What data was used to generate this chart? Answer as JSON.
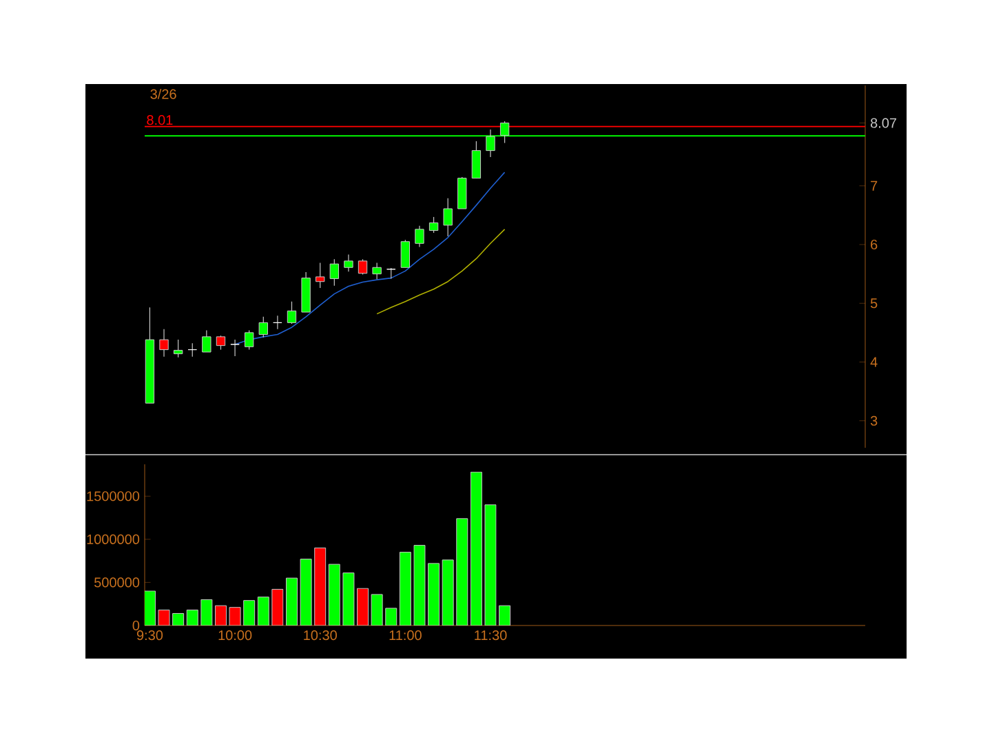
{
  "chart_data": [
    {
      "type": "candlestick",
      "title": "3/26",
      "x": [
        9.5,
        9.5833,
        9.6667,
        9.75,
        9.8333,
        9.9167,
        10.0,
        10.0833,
        10.1667,
        10.25,
        10.3333,
        10.4167,
        10.5,
        10.5833,
        10.6667,
        10.75,
        10.8333,
        10.9167,
        11.0,
        11.0833,
        11.1667,
        11.25,
        11.3333,
        11.4167,
        11.5,
        11.5833
      ],
      "ohlc": [
        [
          3.3,
          4.93,
          3.3,
          4.38
        ],
        [
          4.38,
          4.56,
          4.09,
          4.21
        ],
        [
          4.14,
          4.38,
          4.08,
          4.2
        ],
        [
          4.21,
          4.32,
          4.09,
          4.21
        ],
        [
          4.17,
          4.54,
          4.17,
          4.43
        ],
        [
          4.43,
          4.45,
          4.21,
          4.28
        ],
        [
          4.3,
          4.38,
          4.1,
          4.3
        ],
        [
          4.26,
          4.54,
          4.21,
          4.5
        ],
        [
          4.47,
          4.77,
          4.42,
          4.67
        ],
        [
          4.67,
          4.79,
          4.56,
          4.67
        ],
        [
          4.67,
          5.03,
          4.65,
          4.87
        ],
        [
          4.85,
          5.53,
          4.85,
          5.43
        ],
        [
          5.45,
          5.69,
          5.26,
          5.37
        ],
        [
          5.42,
          5.75,
          5.3,
          5.67
        ],
        [
          5.61,
          5.83,
          5.54,
          5.72
        ],
        [
          5.72,
          5.75,
          5.49,
          5.51
        ],
        [
          5.5,
          5.69,
          5.41,
          5.61
        ],
        [
          5.58,
          5.6,
          5.42,
          5.58
        ],
        [
          5.61,
          6.08,
          5.61,
          6.05
        ],
        [
          6.02,
          6.32,
          5.96,
          6.26
        ],
        [
          6.24,
          6.47,
          6.2,
          6.37
        ],
        [
          6.33,
          6.79,
          6.14,
          6.61
        ],
        [
          6.61,
          7.15,
          6.61,
          7.13
        ],
        [
          7.13,
          7.76,
          7.13,
          7.6
        ],
        [
          7.6,
          7.96,
          7.49,
          7.84
        ],
        [
          7.86,
          8.1,
          7.73,
          8.07
        ]
      ],
      "colors": [
        "#00ff00",
        "#ff0000",
        "#00ff00",
        "#ffffff",
        "#00ff00",
        "#ff0000",
        "#ffffff",
        "#00ff00",
        "#00ff00",
        "#ffffff",
        "#00ff00",
        "#00ff00",
        "#ff0000",
        "#00ff00",
        "#00ff00",
        "#ff0000",
        "#00ff00",
        "#ffffff",
        "#00ff00",
        "#00ff00",
        "#00ff00",
        "#00ff00",
        "#00ff00",
        "#00ff00",
        "#00ff00",
        "#00ff00"
      ],
      "series": [
        {
          "type": "line",
          "color": "#1f5fd0",
          "x": [
            10.0,
            10.0833,
            10.1667,
            10.25,
            10.3333,
            10.4167,
            10.5,
            10.5833,
            10.6667,
            10.75,
            10.8333,
            10.9167,
            11.0,
            11.0833,
            11.1667,
            11.25,
            11.3333,
            11.4167,
            11.5,
            11.5833
          ],
          "values": [
            4.3,
            4.38,
            4.43,
            4.47,
            4.59,
            4.77,
            4.97,
            5.16,
            5.29,
            5.36,
            5.4,
            5.43,
            5.55,
            5.75,
            5.92,
            6.12,
            6.39,
            6.67,
            6.96,
            7.23
          ]
        },
        {
          "type": "line",
          "color": "#b0b000",
          "x": [
            10.8333,
            10.9167,
            11.0,
            11.0833,
            11.1667,
            11.25,
            11.3333,
            11.4167,
            11.5,
            11.5833
          ],
          "values": [
            4.82,
            4.93,
            5.03,
            5.14,
            5.24,
            5.37,
            5.55,
            5.76,
            6.02,
            6.26
          ]
        }
      ],
      "xlim": [
        9.47,
        13.7
      ],
      "ylim": [
        2.54,
        8.71
      ],
      "yticks": [
        3,
        4,
        5,
        6,
        7,
        {
          "value": 8.07,
          "label": "8.07"
        }
      ],
      "ref_lines": [
        {
          "axis": "y",
          "value": 8.01,
          "label": "8.01",
          "color": "#ff0000"
        },
        {
          "axis": "y",
          "value": 7.85,
          "color": "#00ff00"
        }
      ],
      "tick_labels": "y"
    },
    {
      "type": "bar",
      "x": [
        9.5,
        9.5833,
        9.6667,
        9.75,
        9.8333,
        9.9167,
        10.0,
        10.0833,
        10.1667,
        10.25,
        10.3333,
        10.4167,
        10.5,
        10.5833,
        10.6667,
        10.75,
        10.8333,
        10.9167,
        11.0,
        11.0833,
        11.1667,
        11.25,
        11.3333,
        11.4167,
        11.5,
        11.5833
      ],
      "values": [
        400000,
        180000,
        140000,
        180000,
        300000,
        230000,
        210000,
        290000,
        330000,
        420000,
        550000,
        770000,
        900000,
        710000,
        610000,
        430000,
        360000,
        200000,
        850000,
        930000,
        720000,
        760000,
        1240000,
        1780000,
        1400000,
        230000
      ],
      "colors": [
        "#00ff00",
        "#ff0000",
        "#00ff00",
        "#00ff00",
        "#00ff00",
        "#ff0000",
        "#ff0000",
        "#00ff00",
        "#00ff00",
        "#ff0000",
        "#00ff00",
        "#00ff00",
        "#ff0000",
        "#00ff00",
        "#00ff00",
        "#ff0000",
        "#00ff00",
        "#00ff00",
        "#00ff00",
        "#00ff00",
        "#00ff00",
        "#00ff00",
        "#00ff00",
        "#00ff00",
        "#00ff00",
        "#00ff00"
      ],
      "xlim": [
        9.47,
        13.7
      ],
      "ylim": [
        0,
        1870000
      ],
      "xticks": [
        {
          "value": 9.5,
          "label": "9:30"
        },
        {
          "value": 10.0,
          "label": "10:00"
        },
        {
          "value": 10.5,
          "label": "10:30"
        },
        {
          "value": 11.0,
          "label": "11:00"
        },
        {
          "value": 11.5,
          "label": "11:30"
        }
      ],
      "yticks": [
        0,
        500000,
        1000000,
        1500000
      ]
    }
  ]
}
